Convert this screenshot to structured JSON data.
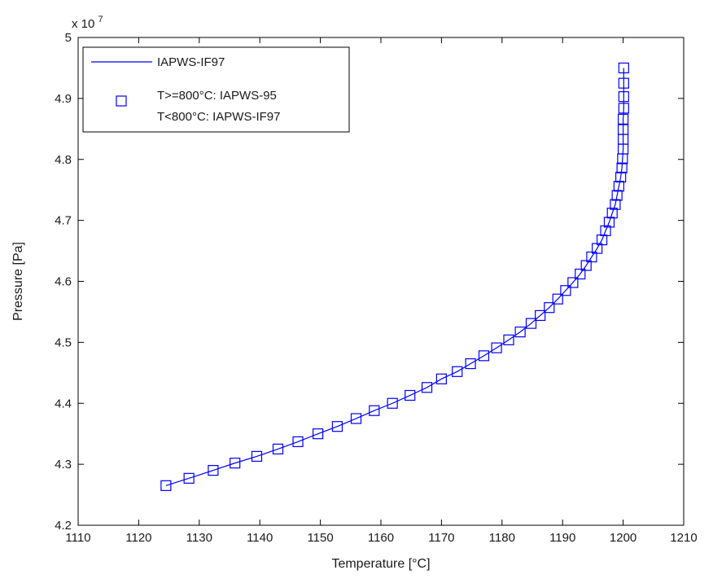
{
  "chart_data": {
    "type": "line",
    "title": "",
    "xlabel": "Temperature [°C]",
    "ylabel": "Pressure [Pa]",
    "xlim": [
      1110,
      1210
    ],
    "ylim": [
      4.2,
      5.0
    ],
    "y_exponent_label": "x 10",
    "y_exponent_power": "7",
    "xticks": [
      1110,
      1120,
      1130,
      1140,
      1150,
      1160,
      1170,
      1180,
      1190,
      1200,
      1210
    ],
    "yticks": [
      4.2,
      4.3,
      4.4,
      4.5,
      4.6,
      4.7,
      4.8,
      4.9,
      5
    ],
    "grid": false,
    "legend_position": "top-left",
    "colors": {
      "series": "#0000ff",
      "axes": "#000000"
    },
    "series": [
      {
        "name": "IAPWS-IF97",
        "style": "line",
        "x": [
          1124.5,
          1128.3,
          1132.3,
          1135.9,
          1139.5,
          1143.0,
          1146.3,
          1149.6,
          1152.8,
          1155.9,
          1158.9,
          1161.9,
          1164.8,
          1167.6,
          1170.0,
          1172.6,
          1174.8,
          1177.0,
          1179.1,
          1181.1,
          1183.0,
          1184.8,
          1186.3,
          1187.8,
          1189.2,
          1190.5,
          1191.7,
          1192.9,
          1193.9,
          1194.8,
          1195.7,
          1196.5,
          1197.1,
          1197.7,
          1198.2,
          1198.7,
          1199.0,
          1199.3,
          1199.6,
          1199.8,
          1199.9,
          1200.0,
          1200.0,
          1200.0,
          1200.0,
          1200.1,
          1200.1,
          1200.1,
          1200.1
        ],
        "y": [
          4.265,
          4.277,
          4.29,
          4.302,
          4.313,
          4.325,
          4.337,
          4.35,
          4.362,
          4.375,
          4.388,
          4.4,
          4.413,
          4.426,
          4.44,
          4.452,
          4.465,
          4.478,
          4.491,
          4.504,
          4.517,
          4.531,
          4.544,
          4.557,
          4.571,
          4.585,
          4.598,
          4.612,
          4.626,
          4.64,
          4.654,
          4.668,
          4.683,
          4.697,
          4.712,
          4.726,
          4.741,
          4.756,
          4.771,
          4.786,
          4.801,
          4.817,
          4.833,
          4.849,
          4.866,
          4.884,
          4.903,
          4.925,
          4.95
        ]
      },
      {
        "name": "T>=800°C: IAPWS-95\nT<800°C: IAPWS-IF97",
        "style": "square-markers",
        "x": [
          1124.5,
          1128.3,
          1132.3,
          1135.9,
          1139.5,
          1143.0,
          1146.3,
          1149.6,
          1152.8,
          1155.9,
          1158.9,
          1161.9,
          1164.8,
          1167.6,
          1170.0,
          1172.6,
          1174.8,
          1177.0,
          1179.1,
          1181.1,
          1183.0,
          1184.8,
          1186.3,
          1187.8,
          1189.2,
          1190.5,
          1191.7,
          1192.9,
          1193.9,
          1194.8,
          1195.7,
          1196.5,
          1197.1,
          1197.7,
          1198.2,
          1198.7,
          1199.0,
          1199.3,
          1199.6,
          1199.8,
          1199.9,
          1200.0,
          1200.0,
          1200.0,
          1200.0,
          1200.1,
          1200.1,
          1200.1,
          1200.1
        ],
        "y": [
          4.265,
          4.277,
          4.29,
          4.302,
          4.313,
          4.325,
          4.337,
          4.35,
          4.362,
          4.375,
          4.388,
          4.4,
          4.413,
          4.426,
          4.44,
          4.452,
          4.465,
          4.478,
          4.491,
          4.504,
          4.517,
          4.531,
          4.544,
          4.557,
          4.571,
          4.585,
          4.598,
          4.612,
          4.626,
          4.64,
          4.654,
          4.668,
          4.683,
          4.697,
          4.712,
          4.726,
          4.741,
          4.756,
          4.771,
          4.786,
          4.801,
          4.817,
          4.833,
          4.849,
          4.866,
          4.884,
          4.903,
          4.925,
          4.95
        ]
      }
    ],
    "legend": {
      "line_label": "IAPWS-IF97",
      "marker_label_line1": "T>=800°C: IAPWS-95",
      "marker_label_line2": "T<800°C: IAPWS-IF97"
    }
  }
}
